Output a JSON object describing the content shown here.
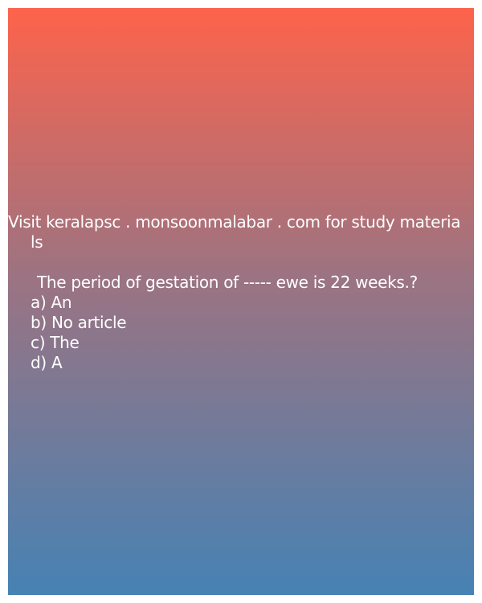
{
  "source_line": {
    "part1": "Visit keralapsc . monsoonmalabar . com for study materia",
    "part2": "ls"
  },
  "question": {
    "text": "The period of gestation of ----- ewe is 22 weeks.?",
    "options": [
      "a) An",
      "b) No article",
      "c) The",
      "d) A"
    ]
  }
}
